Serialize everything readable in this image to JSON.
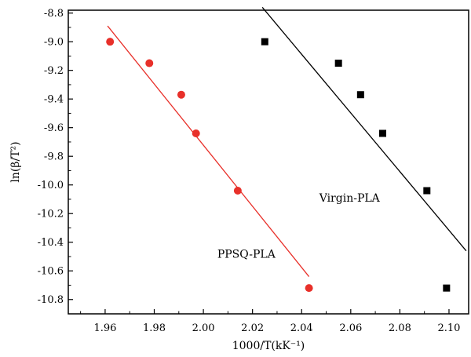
{
  "chart_data": {
    "type": "scatter",
    "xlabel": "1000/T(kK⁻¹)",
    "ylabel": "ln(β/T²)",
    "xlim": [
      1.945,
      2.108
    ],
    "ylim": [
      -10.9,
      -8.78
    ],
    "xticks": [
      1.96,
      1.98,
      2.0,
      2.02,
      2.04,
      2.06,
      2.08,
      2.1
    ],
    "xtick_labels": [
      "1.96",
      "1.98",
      "2.00",
      "2.02",
      "2.04",
      "2.06",
      "2.08",
      "2.10"
    ],
    "yticks": [
      -8.8,
      -9.0,
      -9.2,
      -9.4,
      -9.6,
      -9.8,
      -10.0,
      -10.2,
      -10.4,
      -10.6,
      -10.8
    ],
    "ytick_labels": [
      "-8.8",
      "-9.0",
      "-9.2",
      "-9.4",
      "-9.6",
      "-9.8",
      "-10.0",
      "-10.2",
      "-10.4",
      "-10.6",
      "-10.8"
    ],
    "grid": false,
    "series": [
      {
        "name": "PPSQ-PLA",
        "color": "#e8302a",
        "marker": "circle",
        "x": [
          1.962,
          1.978,
          1.991,
          1.997,
          2.014,
          2.043
        ],
        "y": [
          -9.0,
          -9.15,
          -9.37,
          -9.64,
          -10.04,
          -10.72
        ],
        "fit_line": {
          "x": [
            1.961,
            2.043
          ],
          "y": [
            -8.89,
            -10.64
          ]
        }
      },
      {
        "name": "Virgin-PLA",
        "color": "#000000",
        "marker": "square",
        "x": [
          2.025,
          2.055,
          2.064,
          2.073,
          2.091,
          2.099
        ],
        "y": [
          -9.0,
          -9.15,
          -9.37,
          -9.64,
          -10.04,
          -10.72
        ],
        "fit_line": {
          "x": [
            2.024,
            2.107
          ],
          "y": [
            -8.76,
            -10.46
          ]
        }
      }
    ],
    "annotations": [
      {
        "text": "PPSQ-PLA",
        "x": 2.0175,
        "y": -10.48
      },
      {
        "text": "Virgin-PLA",
        "x": 2.0595,
        "y": -10.09
      }
    ]
  }
}
